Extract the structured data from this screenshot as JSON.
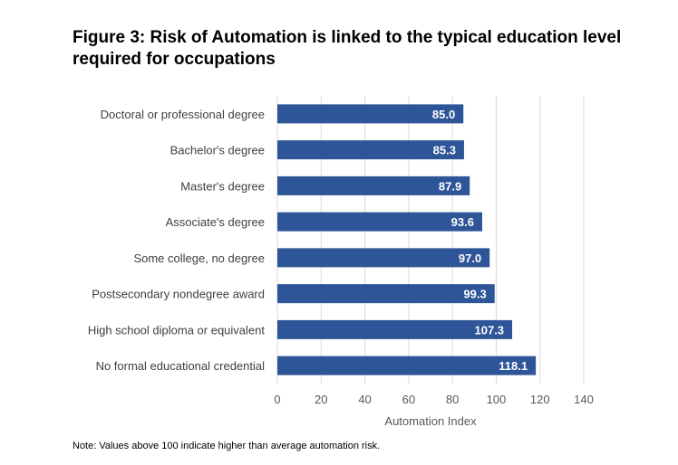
{
  "title": "Figure 3: Risk of Automation is linked to the typical education level required for occupations",
  "note": "Note: Values above 100 indicate higher than average automation risk.",
  "colors": {
    "bar": "#2e5597",
    "bar_label": "#ffffff",
    "gridline": "#d9d9d9",
    "axis_text": "#595959",
    "category_text": "#404040"
  },
  "chart_data": {
    "type": "bar",
    "orientation": "horizontal",
    "categories": [
      "Doctoral or professional degree",
      "Bachelor's degree",
      "Master's degree",
      "Associate's degree",
      "Some college, no degree",
      "Postsecondary nondegree award",
      "High school diploma or equivalent",
      "No formal educational credential"
    ],
    "values": [
      85.0,
      85.3,
      87.9,
      93.6,
      97.0,
      99.3,
      107.3,
      118.1
    ],
    "value_labels": [
      "85.0",
      "85.3",
      "87.9",
      "93.6",
      "97.0",
      "99.3",
      "107.3",
      "118.1"
    ],
    "xlabel": "Automation Index",
    "ylabel": "",
    "xlim": [
      0,
      140
    ],
    "xticks": [
      0,
      20,
      40,
      60,
      80,
      100,
      120,
      140
    ],
    "xtick_labels": [
      "0",
      "20",
      "40",
      "60",
      "80",
      "100",
      "120",
      "140"
    ],
    "grid": "vertical",
    "legend": "none"
  }
}
